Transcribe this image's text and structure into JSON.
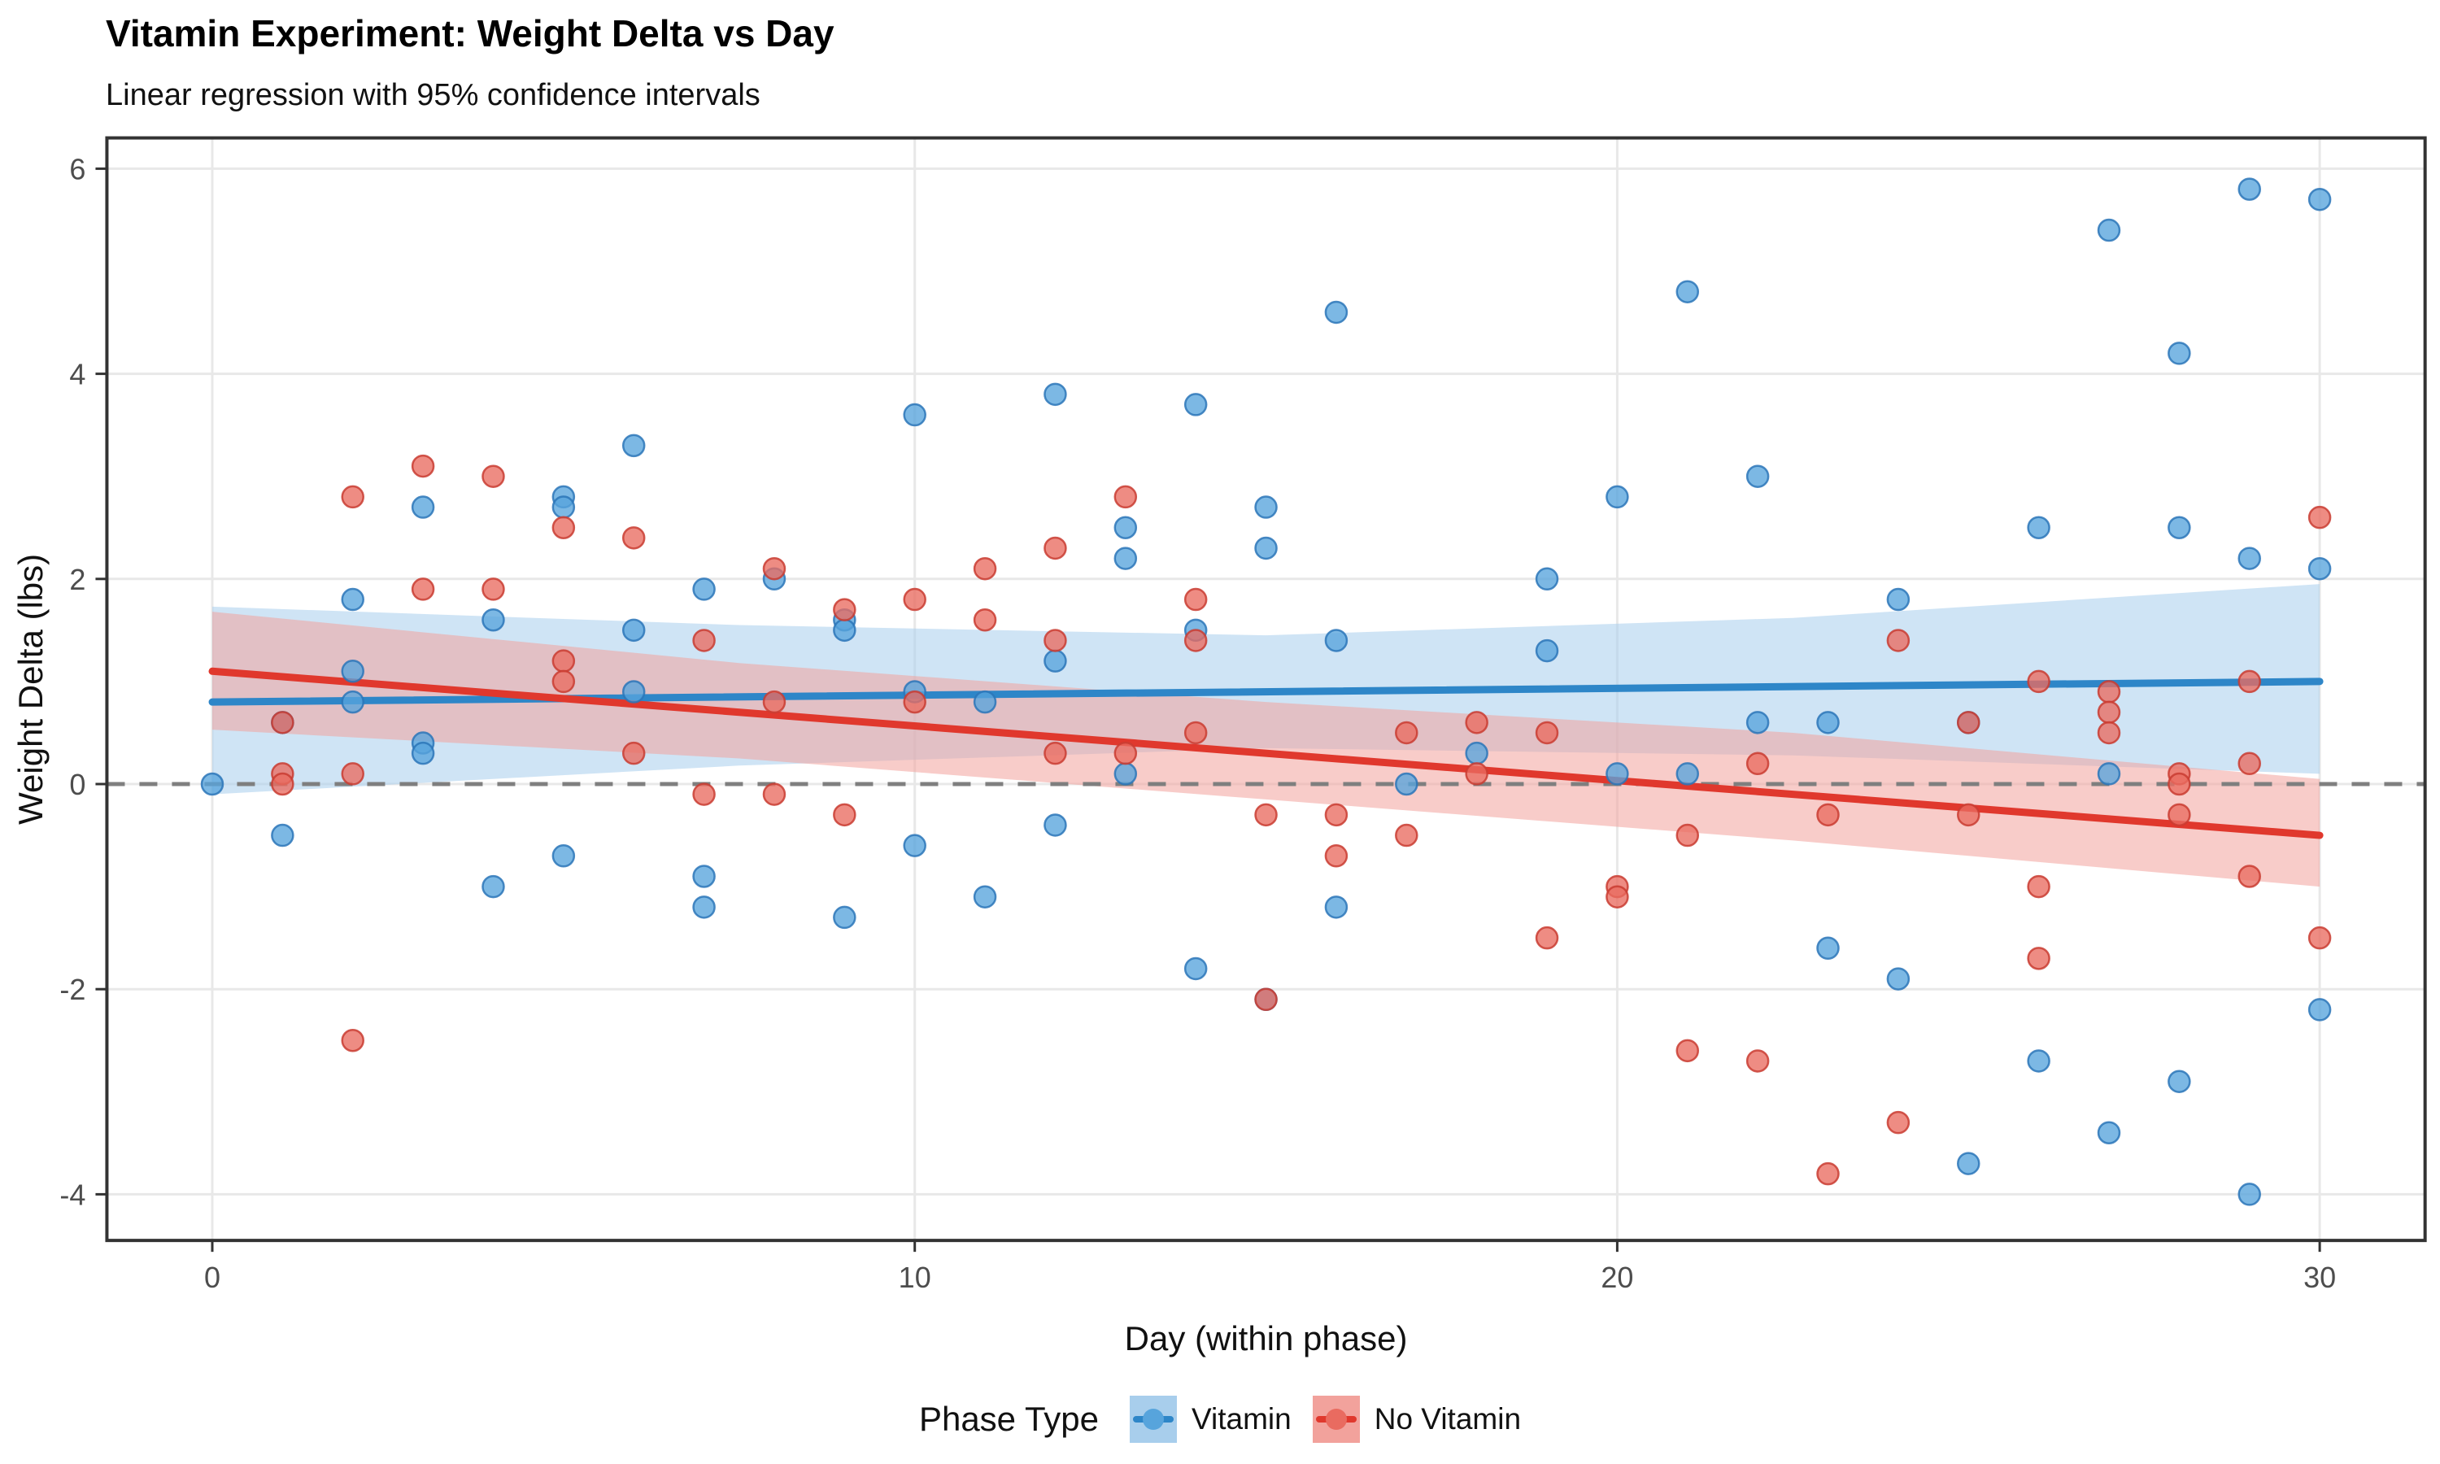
{
  "header": {
    "title": "Vitamin Experiment: Weight Delta vs Day",
    "subtitle": "Linear regression with 95% confidence intervals"
  },
  "chart_data": {
    "type": "scatter",
    "title": "Vitamin Experiment: Weight Delta vs Day",
    "subtitle": "Linear regression with 95% confidence intervals",
    "xlabel": "Day (within phase)",
    "ylabel": "Weight Delta (lbs)",
    "xlim": [
      -1.5,
      31.5
    ],
    "ylim": [
      -4.45,
      6.3
    ],
    "x_ticks": [
      0,
      10,
      20,
      30
    ],
    "y_ticks": [
      -4,
      -2,
      0,
      2,
      4,
      6
    ],
    "grid": "major-only",
    "zero_line": {
      "y": 0,
      "style": "dashed",
      "color": "#7f7f7f"
    },
    "colors": {
      "panel_border": "#333333",
      "gridline": "#e8e8e8",
      "axis_text": "#4d4d4d",
      "vitamin_point": "#57a4dc",
      "vitamin_point_stroke": "#2c76b8",
      "vitamin_line": "#2e86c8",
      "vitamin_band": "#a8ceec",
      "novitamin_point": "#e96b60",
      "novitamin_point_stroke": "#c93c31",
      "novitamin_line": "#e0382d",
      "novitamin_band": "#f2a29c"
    },
    "legend": {
      "title": "Phase Type",
      "position": "bottom",
      "entries": [
        {
          "label": "Vitamin",
          "color": "#2e86c8"
        },
        {
          "label": "No Vitamin",
          "color": "#e0382d"
        }
      ]
    },
    "series": [
      {
        "name": "Vitamin",
        "regression": {
          "x0": 0,
          "y0": 0.8,
          "x1": 30,
          "y1": 1.0
        },
        "ci": [
          {
            "x": 0,
            "lo": -0.1,
            "hi": 1.73
          },
          {
            "x": 7.5,
            "lo": 0.18,
            "hi": 1.55
          },
          {
            "x": 15,
            "lo": 0.35,
            "hi": 1.45
          },
          {
            "x": 22.5,
            "lo": 0.28,
            "hi": 1.62
          },
          {
            "x": 30,
            "lo": 0.1,
            "hi": 1.95
          }
        ],
        "points": [
          [
            0,
            0.0
          ],
          [
            1,
            0.6
          ],
          [
            1,
            -0.5
          ],
          [
            2,
            1.8
          ],
          [
            2,
            1.1
          ],
          [
            2,
            0.8
          ],
          [
            3,
            2.7
          ],
          [
            3,
            0.4
          ],
          [
            3,
            0.3
          ],
          [
            4,
            1.6
          ],
          [
            4,
            -1.0
          ],
          [
            5,
            2.8
          ],
          [
            5,
            2.7
          ],
          [
            5,
            -0.7
          ],
          [
            6,
            3.3
          ],
          [
            6,
            1.5
          ],
          [
            6,
            0.9
          ],
          [
            7,
            1.9
          ],
          [
            7,
            -0.9
          ],
          [
            7,
            -1.2
          ],
          [
            8,
            2.0
          ],
          [
            9,
            1.6
          ],
          [
            9,
            1.5
          ],
          [
            9,
            -1.3
          ],
          [
            10,
            3.6
          ],
          [
            10,
            0.9
          ],
          [
            10,
            -0.6
          ],
          [
            11,
            0.8
          ],
          [
            11,
            -1.1
          ],
          [
            12,
            3.8
          ],
          [
            12,
            1.2
          ],
          [
            12,
            -0.4
          ],
          [
            13,
            2.5
          ],
          [
            13,
            2.2
          ],
          [
            13,
            0.1
          ],
          [
            14,
            3.7
          ],
          [
            14,
            1.5
          ],
          [
            14,
            -1.8
          ],
          [
            15,
            2.7
          ],
          [
            15,
            2.3
          ],
          [
            15,
            -2.1
          ],
          [
            16,
            4.6
          ],
          [
            16,
            1.4
          ],
          [
            16,
            -1.2
          ],
          [
            17,
            0.0
          ],
          [
            18,
            0.3
          ],
          [
            19,
            2.0
          ],
          [
            19,
            1.3
          ],
          [
            20,
            2.8
          ],
          [
            20,
            0.1
          ],
          [
            21,
            4.8
          ],
          [
            21,
            0.1
          ],
          [
            22,
            3.0
          ],
          [
            22,
            0.6
          ],
          [
            23,
            0.6
          ],
          [
            23,
            -1.6
          ],
          [
            24,
            1.8
          ],
          [
            24,
            -1.9
          ],
          [
            25,
            0.6
          ],
          [
            25,
            -3.7
          ],
          [
            26,
            2.5
          ],
          [
            26,
            -2.7
          ],
          [
            27,
            5.4
          ],
          [
            27,
            0.1
          ],
          [
            27,
            -3.4
          ],
          [
            28,
            4.2
          ],
          [
            28,
            2.5
          ],
          [
            28,
            -2.9
          ],
          [
            29,
            5.8
          ],
          [
            29,
            2.2
          ],
          [
            29,
            -4.0
          ],
          [
            30,
            5.7
          ],
          [
            30,
            2.1
          ],
          [
            30,
            -2.2
          ]
        ]
      },
      {
        "name": "No Vitamin",
        "regression": {
          "x0": 0,
          "y0": 1.1,
          "x1": 30,
          "y1": -0.5
        },
        "ci": [
          {
            "x": 0,
            "lo": 0.53,
            "hi": 1.68
          },
          {
            "x": 7.5,
            "lo": 0.25,
            "hi": 1.18
          },
          {
            "x": 15,
            "lo": -0.15,
            "hi": 0.8
          },
          {
            "x": 22.5,
            "lo": -0.55,
            "hi": 0.5
          },
          {
            "x": 30,
            "lo": -1.0,
            "hi": 0.05
          }
        ],
        "points": [
          [
            1,
            0.6
          ],
          [
            1,
            0.1
          ],
          [
            1,
            0.0
          ],
          [
            2,
            2.8
          ],
          [
            2,
            0.1
          ],
          [
            2,
            -2.5
          ],
          [
            3,
            3.1
          ],
          [
            3,
            1.9
          ],
          [
            4,
            3.0
          ],
          [
            4,
            1.9
          ],
          [
            5,
            2.5
          ],
          [
            5,
            1.2
          ],
          [
            5,
            1.0
          ],
          [
            6,
            2.4
          ],
          [
            6,
            0.3
          ],
          [
            7,
            1.4
          ],
          [
            7,
            -0.1
          ],
          [
            8,
            2.1
          ],
          [
            8,
            0.8
          ],
          [
            8,
            -0.1
          ],
          [
            9,
            1.7
          ],
          [
            9,
            -0.3
          ],
          [
            10,
            1.8
          ],
          [
            10,
            0.8
          ],
          [
            11,
            2.1
          ],
          [
            11,
            1.6
          ],
          [
            12,
            2.3
          ],
          [
            12,
            1.4
          ],
          [
            12,
            0.3
          ],
          [
            13,
            2.8
          ],
          [
            13,
            0.3
          ],
          [
            14,
            1.8
          ],
          [
            14,
            1.4
          ],
          [
            14,
            0.5
          ],
          [
            15,
            -0.3
          ],
          [
            15,
            -2.1
          ],
          [
            16,
            -0.3
          ],
          [
            16,
            -0.7
          ],
          [
            17,
            0.5
          ],
          [
            17,
            -0.5
          ],
          [
            18,
            0.6
          ],
          [
            18,
            0.1
          ],
          [
            19,
            0.5
          ],
          [
            19,
            -1.5
          ],
          [
            20,
            -1.0
          ],
          [
            20,
            -1.1
          ],
          [
            21,
            -0.5
          ],
          [
            21,
            -2.6
          ],
          [
            22,
            0.2
          ],
          [
            22,
            -2.7
          ],
          [
            23,
            -0.3
          ],
          [
            23,
            -3.8
          ],
          [
            24,
            1.4
          ],
          [
            24,
            -3.3
          ],
          [
            25,
            0.6
          ],
          [
            25,
            -0.3
          ],
          [
            26,
            1.0
          ],
          [
            26,
            -1.0
          ],
          [
            26,
            -1.7
          ],
          [
            27,
            0.9
          ],
          [
            27,
            0.7
          ],
          [
            27,
            0.5
          ],
          [
            28,
            0.1
          ],
          [
            28,
            0.0
          ],
          [
            28,
            -0.3
          ],
          [
            29,
            1.0
          ],
          [
            29,
            0.2
          ],
          [
            29,
            -0.9
          ],
          [
            30,
            2.6
          ],
          [
            30,
            -1.5
          ]
        ]
      }
    ]
  }
}
